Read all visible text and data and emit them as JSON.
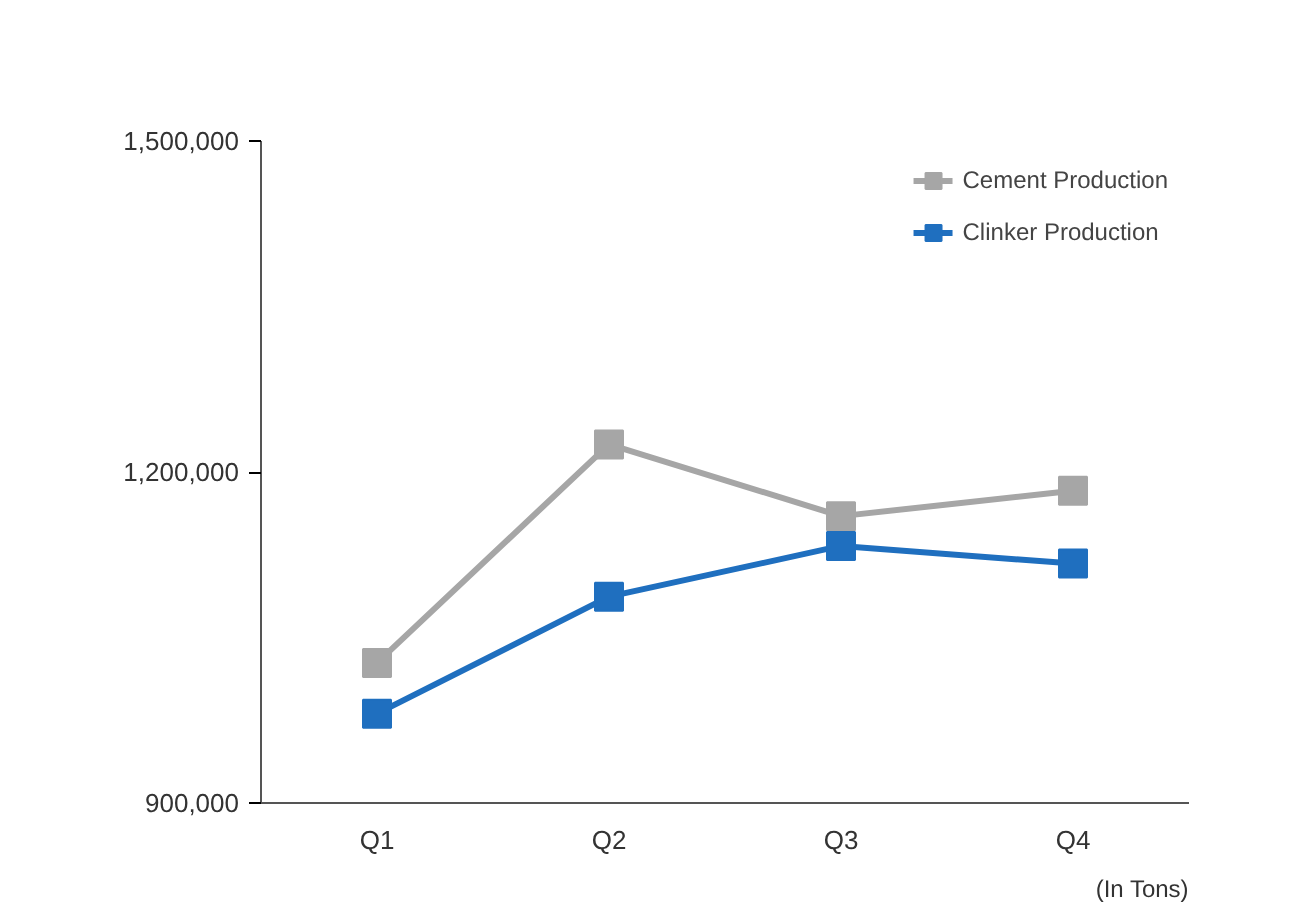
{
  "chart_data": {
    "type": "line",
    "categories": [
      "Q1",
      "Q2",
      "Q3",
      "Q4"
    ],
    "series": [
      {
        "name": "Cement Production",
        "color": "#a6a6a6",
        "values": [
          1027000,
          1225000,
          1160000,
          1183000
        ]
      },
      {
        "name": "Clinker Production",
        "color": "#1f6fbf",
        "values": [
          981000,
          1087000,
          1133000,
          1117000
        ]
      }
    ],
    "ylim": [
      900000,
      1500000
    ],
    "yticks": [
      {
        "value": 900000,
        "label": "900,000"
      },
      {
        "value": 1200000,
        "label": "1,200,000"
      },
      {
        "value": 1500000,
        "label": "1,500,000"
      }
    ],
    "grid": false,
    "legend": "top right",
    "marker": "square",
    "line_style": "solid",
    "annotations": [
      "(In Tons)"
    ]
  }
}
